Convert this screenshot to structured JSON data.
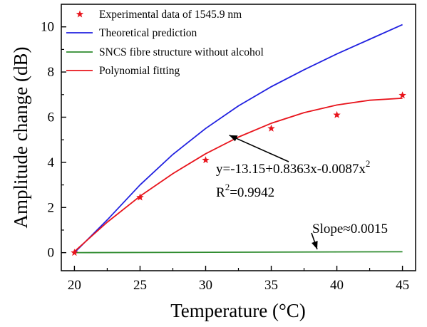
{
  "chart_data": {
    "type": "line",
    "xlabel": "Temperature",
    "xlabel_unit": "(°C)",
    "ylabel": "Amplitude change (dB)",
    "xlim": [
      19,
      46
    ],
    "ylim": [
      -0.8,
      11
    ],
    "xticks": [
      20,
      25,
      30,
      35,
      40,
      45
    ],
    "yticks": [
      0,
      2,
      4,
      6,
      8,
      10
    ],
    "grid": false,
    "legend_position": "top-left",
    "series": [
      {
        "name": "Experimental data of 1545.9 nm",
        "kind": "scatter",
        "marker": "star",
        "color": "#e8141c",
        "x": [
          20,
          25,
          30,
          35,
          40,
          45
        ],
        "y": [
          0,
          2.45,
          4.1,
          5.5,
          6.1,
          6.97
        ]
      },
      {
        "name": "Theoretical prediction",
        "kind": "line",
        "color": "#2020e0",
        "x": [
          20,
          22.5,
          25,
          27.5,
          30,
          32.5,
          35,
          37.5,
          40,
          42.5,
          45
        ],
        "y": [
          0,
          1.45,
          3.0,
          4.35,
          5.5,
          6.5,
          7.35,
          8.1,
          8.8,
          9.45,
          10.1
        ]
      },
      {
        "name": "SNCS fibre structure without alcohol",
        "kind": "line",
        "color": "#2e8b2e",
        "x": [
          20,
          45
        ],
        "y": [
          0,
          0.04
        ]
      },
      {
        "name": "Polynomial fitting",
        "kind": "line",
        "color": "#e8141c",
        "x": [
          20,
          22.5,
          25,
          27.5,
          30,
          32.5,
          35,
          37.5,
          40,
          42.5,
          45
        ],
        "y": [
          0.05,
          1.35,
          2.5,
          3.5,
          4.38,
          5.12,
          5.73,
          6.2,
          6.54,
          6.75,
          6.84
        ]
      }
    ],
    "annotations": [
      {
        "id": "equation",
        "text": "y=-13.15+0.8363x-0.0087x",
        "superscript": "2",
        "arrow_to": [
          31.8,
          5.2
        ]
      },
      {
        "id": "r2",
        "text_main": "R",
        "superscript": "2",
        "text_after": "=0.9942"
      },
      {
        "id": "slope",
        "text": "Slope≈0.0015",
        "arrow_to": [
          38.5,
          0.15
        ]
      }
    ]
  }
}
